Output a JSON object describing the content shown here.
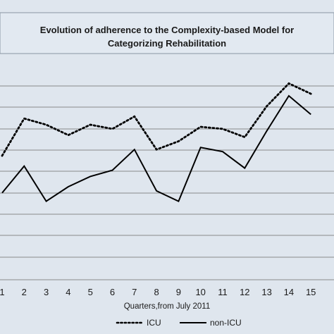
{
  "chart_data": {
    "type": "line",
    "title_lines": [
      "Evolution of adherence to the Complexity-based Model for",
      "Categorizing Rehabilitation"
    ],
    "xlabel": "Quarters,from July 2011",
    "ylabel": "",
    "x": [
      1,
      2,
      3,
      4,
      5,
      6,
      7,
      8,
      9,
      10,
      11,
      12,
      13,
      14,
      15
    ],
    "x_tick_labels": [
      "1",
      "2",
      "3",
      "4",
      "5",
      "6",
      "7",
      "8",
      "9",
      "10",
      "11",
      "12",
      "13",
      "14",
      "15"
    ],
    "grid": true,
    "legend_position": "bottom",
    "series": [
      {
        "name": "ICU",
        "style": "dotted",
        "color": "#000000",
        "values": [
          7.3,
          9.1,
          8.8,
          8.3,
          8.8,
          8.6,
          9.2,
          7.6,
          8.0,
          8.7,
          8.6,
          8.2,
          9.7,
          10.8,
          10.3
        ]
      },
      {
        "name": "non-ICU",
        "style": "solid",
        "color": "#000000",
        "values": [
          5.5,
          6.8,
          5.1,
          5.8,
          6.3,
          6.6,
          7.6,
          5.6,
          5.1,
          7.7,
          7.5,
          6.7,
          8.5,
          10.2,
          9.3
        ]
      }
    ]
  }
}
